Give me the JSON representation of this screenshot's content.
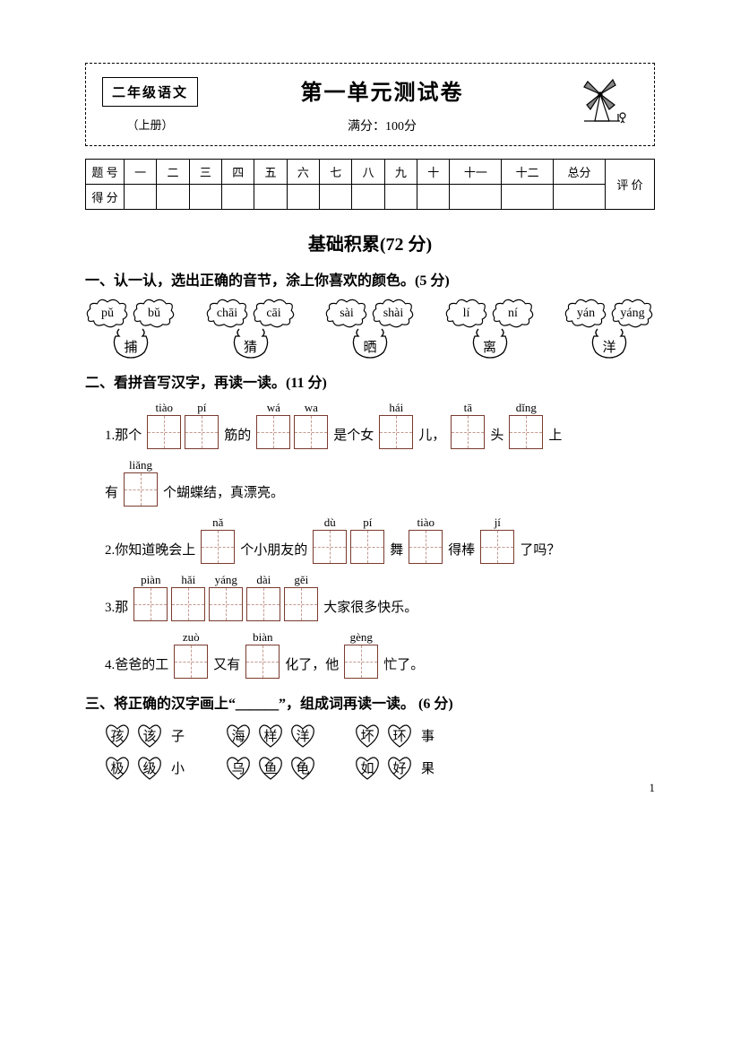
{
  "header": {
    "grade": "二年级语文",
    "volume": "（上册）",
    "title": "第一单元测试卷",
    "full_score": "满分：100分"
  },
  "score_table": {
    "row1_label": "题 号",
    "row2_label": "得 分",
    "cols": [
      "一",
      "二",
      "三",
      "四",
      "五",
      "六",
      "七",
      "八",
      "九",
      "十",
      "十一",
      "十二",
      "总分",
      "评 价"
    ]
  },
  "section_title": "基础积累(72 分)",
  "q1": {
    "title": "一、认一认，选出正确的音节，涂上你喜欢的颜色。(5 分)",
    "items": [
      {
        "a": "pǔ",
        "b": "bǔ",
        "hz": "捕"
      },
      {
        "a": "chāi",
        "b": "cāi",
        "hz": "猜"
      },
      {
        "a": "sài",
        "b": "shài",
        "hz": "晒"
      },
      {
        "a": "lí",
        "b": "ní",
        "hz": "离"
      },
      {
        "a": "yán",
        "b": "yáng",
        "hz": "洋"
      }
    ]
  },
  "q2": {
    "title": "二、看拼音写汉字，再读一读。(11 分)",
    "l1": {
      "pre": "1.那个",
      "p1": "tiào",
      "p2": "pí",
      "t1": "筋的",
      "p3": "wá",
      "p4": "wa",
      "t2": "是个女",
      "p5": "hái",
      "t3": "儿，",
      "p6": "tā",
      "t4": "头",
      "p7": "dǐng",
      "t5": "上"
    },
    "l1b": {
      "pre": "有",
      "p1": "liǎng",
      "t1": "个蝴蝶结，真漂亮。"
    },
    "l2": {
      "pre": "2.你知道晚会上",
      "p1": "nǎ",
      "t1": "个小朋友的",
      "p2": "dù",
      "p3": "pí",
      "t2": "舞",
      "p4": "tiào",
      "t3": "得棒",
      "p5": "jí",
      "t4": "了吗？"
    },
    "l3": {
      "pre": "3.那",
      "p1": "piàn",
      "p2": "hǎi",
      "p3": "yáng",
      "p4": "dài",
      "p5": "gěi",
      "t1": "大家很多快乐。"
    },
    "l4": {
      "pre": "4.爸爸的工",
      "p1": "zuò",
      "t1": "又有",
      "p2": "biàn",
      "t2": "化了，他",
      "p3": "gèng",
      "t3": "忙了。"
    }
  },
  "q3": {
    "title": "三、将正确的汉字画上“＿＿＿”，组成词再读一读。 (6 分)",
    "rows": [
      [
        {
          "a": "孩",
          "b": "该",
          "t": "子"
        },
        {
          "a": "海",
          "b": "样",
          "c": "洋",
          "t": ""
        },
        {
          "a": "坏",
          "b": "环",
          "t": "事"
        }
      ],
      [
        {
          "a": "极",
          "b": "级",
          "t": "小"
        },
        {
          "a": "乌",
          "b": "鱼",
          "c": "龟",
          "t": ""
        },
        {
          "a": "如",
          "b": "好",
          "t": "果"
        }
      ]
    ]
  },
  "page_number": "1",
  "colors": {
    "box": "#7a3b2e",
    "dash": "#c49a8f"
  }
}
